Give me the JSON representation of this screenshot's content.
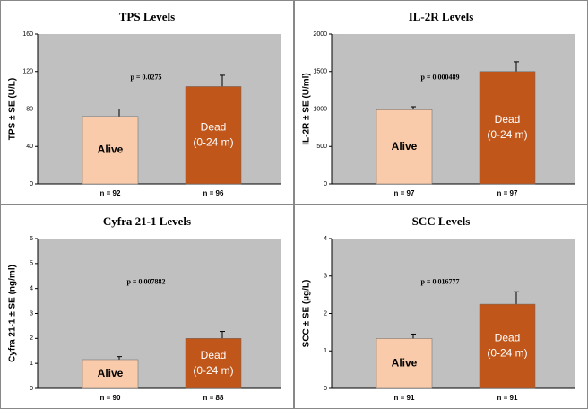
{
  "chart_data": [
    {
      "type": "bar",
      "title": "TPS Levels",
      "y_label": "TPS ± SE (U/L)",
      "annotation": "p = 0.0275",
      "categories": [
        "n = 92",
        "n = 96"
      ],
      "bar_labels": [
        [
          "Alive"
        ],
        [
          "Dead",
          "(0-24 m)"
        ]
      ],
      "values": [
        72,
        104
      ],
      "errors": [
        8,
        12
      ],
      "colors": [
        "#f9cbaa",
        "#c0561a"
      ],
      "ylim": [
        0,
        160
      ],
      "yticks": [
        0,
        40,
        80,
        120,
        160
      ]
    },
    {
      "type": "bar",
      "title": "IL-2R Levels",
      "y_label": "IL-2R ± SE (U/ml)",
      "annotation": "p = 0.000489",
      "categories": [
        "n = 97",
        "n = 97"
      ],
      "bar_labels": [
        [
          "Alive"
        ],
        [
          "Dead",
          "(0-24 m)"
        ]
      ],
      "values": [
        990,
        1500
      ],
      "errors": [
        40,
        130
      ],
      "colors": [
        "#f9cbaa",
        "#c0561a"
      ],
      "ylim": [
        0,
        2000
      ],
      "yticks": [
        0,
        500,
        1000,
        1500,
        2000
      ]
    },
    {
      "type": "bar",
      "title": "Cyfra 21-1 Levels",
      "y_label": "Cyfra 21-1 ± SE (ng/ml)",
      "annotation": "p = 0.007882",
      "categories": [
        "n = 90",
        "n = 88"
      ],
      "bar_labels": [
        [
          "Alive"
        ],
        [
          "Dead",
          "(0-24 m)"
        ]
      ],
      "values": [
        1.15,
        2.0
      ],
      "errors": [
        0.12,
        0.28
      ],
      "colors": [
        "#f9cbaa",
        "#c0561a"
      ],
      "ylim": [
        0,
        6
      ],
      "yticks": [
        0,
        1,
        2,
        3,
        4,
        5,
        6
      ]
    },
    {
      "type": "bar",
      "title": "SCC Levels",
      "y_label": "SCC ± SE (µg/L)",
      "annotation": "p = 0.016777",
      "categories": [
        "n = 91",
        "n = 91"
      ],
      "bar_labels": [
        [
          "Alive"
        ],
        [
          "Dead",
          "(0-24 m)"
        ]
      ],
      "values": [
        1.33,
        2.25
      ],
      "errors": [
        0.12,
        0.33
      ],
      "colors": [
        "#f9cbaa",
        "#c0561a"
      ],
      "ylim": [
        0,
        4
      ],
      "yticks": [
        0,
        1,
        2,
        3,
        4
      ]
    }
  ]
}
